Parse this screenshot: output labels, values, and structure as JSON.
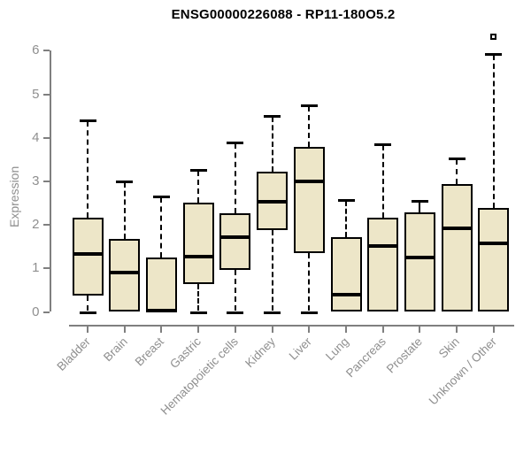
{
  "header": {
    "title": "ENSG00000226088 - RP11-180O5.2"
  },
  "colors": {
    "box_fill": "#EDE6C8",
    "box_border": "#000000",
    "axis_line": "#7f7f7f",
    "axis_text": "#8f8f8f",
    "title_text": "#000000",
    "background": "#ffffff"
  },
  "chart_data": {
    "type": "boxplot",
    "title": "ENSG00000226088 - RP11-180O5.2",
    "xlabel": "",
    "ylabel": "Expression",
    "ylim": [
      0,
      6.4
    ],
    "yticks": [
      0,
      1,
      2,
      3,
      4,
      5,
      6
    ],
    "grid": false,
    "legend": "none",
    "categories": [
      "Bladder",
      "Brain",
      "Breast",
      "Gastric",
      "Hematopoietic cells",
      "Kidney",
      "Liver",
      "Lung",
      "Pancreas",
      "Prostate",
      "Skin",
      "Unknown / Other"
    ],
    "boxes": [
      {
        "label": "Bladder",
        "low": 0.0,
        "q1": 0.37,
        "median": 1.33,
        "q3": 2.17,
        "high": 4.4,
        "outliers": []
      },
      {
        "label": "Brain",
        "low": 0.0,
        "q1": 0.0,
        "median": 0.9,
        "q3": 1.67,
        "high": 3.0,
        "outliers": []
      },
      {
        "label": "Breast",
        "low": 0.0,
        "q1": 0.0,
        "median": 0.03,
        "q3": 1.25,
        "high": 2.65,
        "outliers": []
      },
      {
        "label": "Gastric",
        "low": 0.0,
        "q1": 0.64,
        "median": 1.28,
        "q3": 2.52,
        "high": 3.27,
        "outliers": []
      },
      {
        "label": "Hematopoietic cells",
        "low": 0.0,
        "q1": 0.97,
        "median": 1.72,
        "q3": 2.26,
        "high": 3.9,
        "outliers": []
      },
      {
        "label": "Kidney",
        "low": 0.0,
        "q1": 1.88,
        "median": 2.54,
        "q3": 3.22,
        "high": 4.5,
        "outliers": []
      },
      {
        "label": "Liver",
        "low": 0.0,
        "q1": 1.35,
        "median": 3.0,
        "q3": 3.8,
        "high": 4.75,
        "outliers": []
      },
      {
        "label": "Lung",
        "low": 0.0,
        "q1": 0.0,
        "median": 0.4,
        "q3": 1.72,
        "high": 2.57,
        "outliers": []
      },
      {
        "label": "Pancreas",
        "low": 0.0,
        "q1": 0.0,
        "median": 1.52,
        "q3": 2.17,
        "high": 3.86,
        "outliers": []
      },
      {
        "label": "Prostate",
        "low": 0.0,
        "q1": 0.0,
        "median": 1.25,
        "q3": 2.29,
        "high": 2.55,
        "outliers": []
      },
      {
        "label": "Skin",
        "low": 0.0,
        "q1": 0.0,
        "median": 1.92,
        "q3": 2.93,
        "high": 3.52,
        "outliers": []
      },
      {
        "label": "Unknown / Other",
        "low": 0.0,
        "q1": 0.0,
        "median": 1.57,
        "q3": 2.38,
        "high": 5.92,
        "outliers": [
          6.33
        ]
      }
    ]
  }
}
